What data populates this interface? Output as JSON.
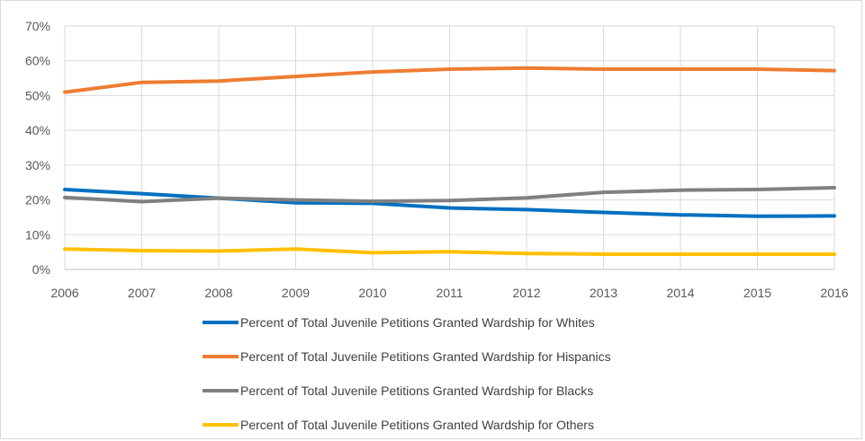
{
  "chart_data": {
    "type": "line",
    "title": "",
    "xlabel": "",
    "ylabel": "",
    "x": [
      "2006",
      "2007",
      "2008",
      "2009",
      "2010",
      "2011",
      "2012",
      "2013",
      "2014",
      "2015",
      "2016"
    ],
    "ylim": [
      0,
      70
    ],
    "yticks": [
      "0%",
      "10%",
      "20%",
      "30%",
      "40%",
      "50%",
      "60%",
      "70%"
    ],
    "grid": "vertical and horizontal",
    "legend_position": "bottom",
    "series": [
      {
        "name": "Percent of Total Juvenile Petitions Granted Wardship for Whites",
        "color": "#0070c0",
        "values": [
          23.0,
          21.8,
          20.5,
          19.2,
          19.0,
          17.7,
          17.2,
          16.4,
          15.7,
          15.3,
          15.4
        ]
      },
      {
        "name": "Percent of Total Juvenile Petitions Granted Wardship for Hispanics",
        "color": "#ed7d31",
        "values": [
          51.0,
          53.8,
          54.2,
          55.5,
          56.8,
          57.6,
          57.9,
          57.6,
          57.6,
          57.6,
          57.2
        ]
      },
      {
        "name": "Percent of Total Juvenile Petitions Granted Wardship for Blacks",
        "color": "#808080",
        "values": [
          20.7,
          19.5,
          20.5,
          20.0,
          19.6,
          19.8,
          20.6,
          22.2,
          22.8,
          23.0,
          23.5
        ]
      },
      {
        "name": "Percent of Total Juvenile Petitions Granted Wardship for Others",
        "color": "#ffc000",
        "values": [
          5.9,
          5.4,
          5.3,
          5.9,
          4.8,
          5.1,
          4.6,
          4.4,
          4.4,
          4.4,
          4.4
        ]
      }
    ]
  }
}
